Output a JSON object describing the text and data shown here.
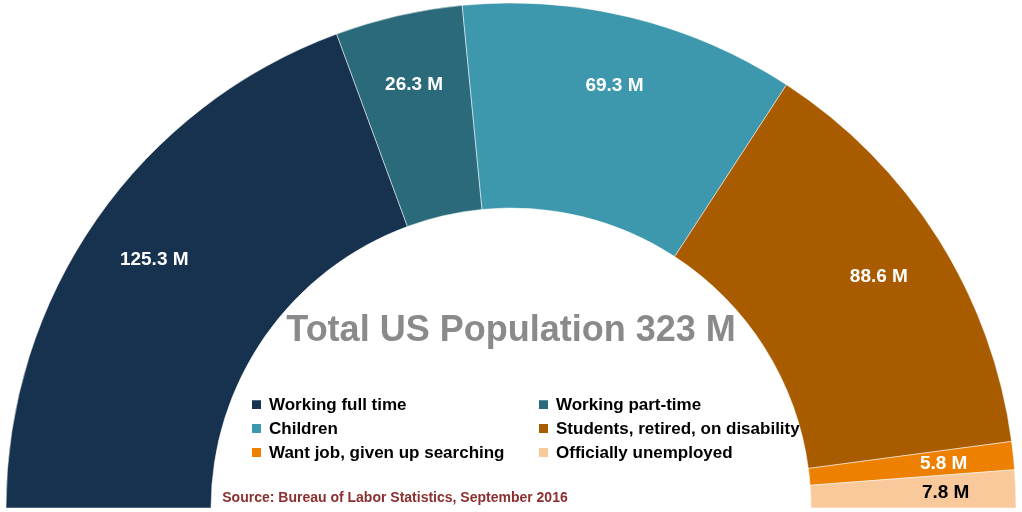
{
  "chart_data": {
    "type": "donut",
    "title": "Total US Population 323 M",
    "categories": [
      "Working full time",
      "Working part-time",
      "Children",
      "Students, retired, on disability",
      "Want job, given up searching",
      "Officially unemployed"
    ],
    "values": [
      125.3,
      26.3,
      69.3,
      88.6,
      5.8,
      7.8
    ],
    "colors": [
      "#17324f",
      "#2b6a7a",
      "#3e98ad",
      "#a95b00",
      "#ed8000",
      "#f9c99c"
    ],
    "value_labels": [
      "125.3 M",
      "26.3 M",
      "69.3 M",
      "88.6 M",
      "5.8 M",
      "7.8 M"
    ],
    "legend": "bottom",
    "annotations": [
      "Source: Bureau of Labor Statistics, September 2016"
    ]
  }
}
